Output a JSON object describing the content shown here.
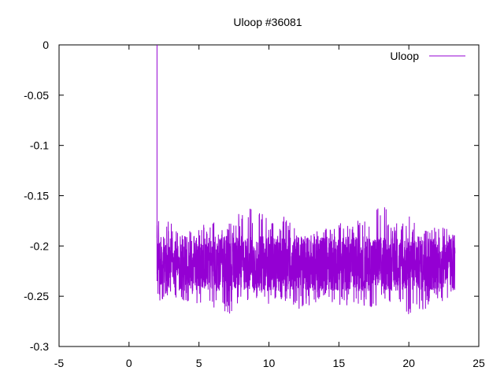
{
  "chart_data": {
    "type": "line",
    "title": "Uloop #36081",
    "xlabel": "",
    "ylabel": "",
    "xlim": [
      -5,
      25
    ],
    "ylim": [
      -0.3,
      0
    ],
    "xticks": [
      -5,
      0,
      5,
      10,
      15,
      20,
      25
    ],
    "xtick_labels": [
      "-5",
      "0",
      "5",
      "10",
      "15",
      "20",
      "25"
    ],
    "yticks": [
      0,
      -0.05,
      -0.1,
      -0.15,
      -0.2,
      -0.25,
      -0.3
    ],
    "ytick_labels": [
      "0",
      "-0.05",
      "-0.1",
      "-0.15",
      "-0.2",
      "-0.25",
      "-0.3"
    ],
    "grid": false,
    "legend": {
      "position": "top-right",
      "entries": [
        "Uloop"
      ]
    },
    "series": [
      {
        "name": "Uloop",
        "color": "#9400d3",
        "style": "dense noisy signal",
        "initial_spike": {
          "x": 2.0,
          "from": -0.235,
          "to": 0.0
        },
        "x_range": [
          2.0,
          23.3
        ],
        "mean": -0.218,
        "typical_band": [
          -0.245,
          -0.19
        ],
        "envelope_x": [
          2.0,
          3.0,
          4.0,
          5.0,
          6.0,
          7.0,
          8.0,
          9.0,
          10.0,
          11.0,
          12.0,
          13.0,
          14.0,
          15.0,
          16.0,
          17.0,
          18.0,
          19.0,
          20.0,
          21.0,
          22.0,
          23.3
        ],
        "envelope_max": [
          -0.175,
          -0.175,
          -0.18,
          -0.18,
          -0.175,
          -0.18,
          -0.165,
          -0.16,
          -0.175,
          -0.17,
          -0.18,
          -0.185,
          -0.18,
          -0.175,
          -0.175,
          -0.17,
          -0.155,
          -0.175,
          -0.17,
          -0.185,
          -0.18,
          -0.185
        ],
        "envelope_min": [
          -0.26,
          -0.25,
          -0.255,
          -0.26,
          -0.265,
          -0.27,
          -0.26,
          -0.255,
          -0.26,
          -0.255,
          -0.265,
          -0.26,
          -0.255,
          -0.26,
          -0.26,
          -0.265,
          -0.26,
          -0.255,
          -0.27,
          -0.265,
          -0.255,
          -0.255
        ]
      }
    ]
  }
}
